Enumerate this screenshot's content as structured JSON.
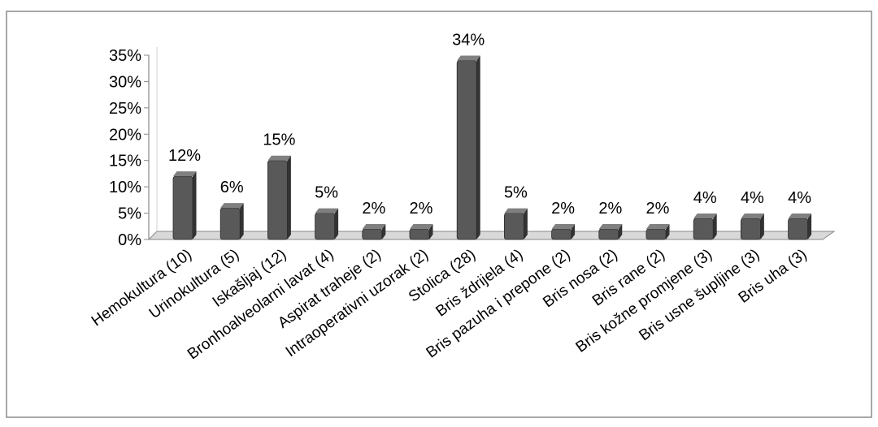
{
  "colors": {
    "bar_front": "#595959",
    "bar_side": "#333333",
    "bar_top": "#808080",
    "floor": "#d9d9d9",
    "axis": "#888888",
    "frame": "#8c8c8c"
  },
  "chart_data": {
    "type": "bar",
    "three_d": true,
    "grid": false,
    "legend": "none",
    "title": "",
    "xlabel": "",
    "ylabel": "",
    "ylim": [
      0,
      35
    ],
    "y_ticks": [
      "0%",
      "5%",
      "10%",
      "15%",
      "20%",
      "25%",
      "30%",
      "35%"
    ],
    "categories": [
      "Hemokultura (10)",
      "Urinokultura (5)",
      "Iskašljaj (12)",
      "Bronhoalveolarni lavat (4)",
      "Aspirat traheje (2)",
      "Intraoperativni uzorak (2)",
      "Stolica (28)",
      "Bris ždrijela (4)",
      "Bris pazuha i prepone (2)",
      "Bris nosa (2)",
      "Bris rane (2)",
      "Bris kožne promjene (3)",
      "Bris usne šupljine (3)",
      "Bris uha (3)"
    ],
    "values": [
      12,
      6,
      15,
      5,
      2,
      2,
      34,
      5,
      2,
      2,
      2,
      4,
      4,
      4
    ],
    "data_labels": [
      "12%",
      "6%",
      "15%",
      "5%",
      "2%",
      "2%",
      "34%",
      "5%",
      "2%",
      "2%",
      "2%",
      "4%",
      "4%",
      "4%"
    ]
  }
}
